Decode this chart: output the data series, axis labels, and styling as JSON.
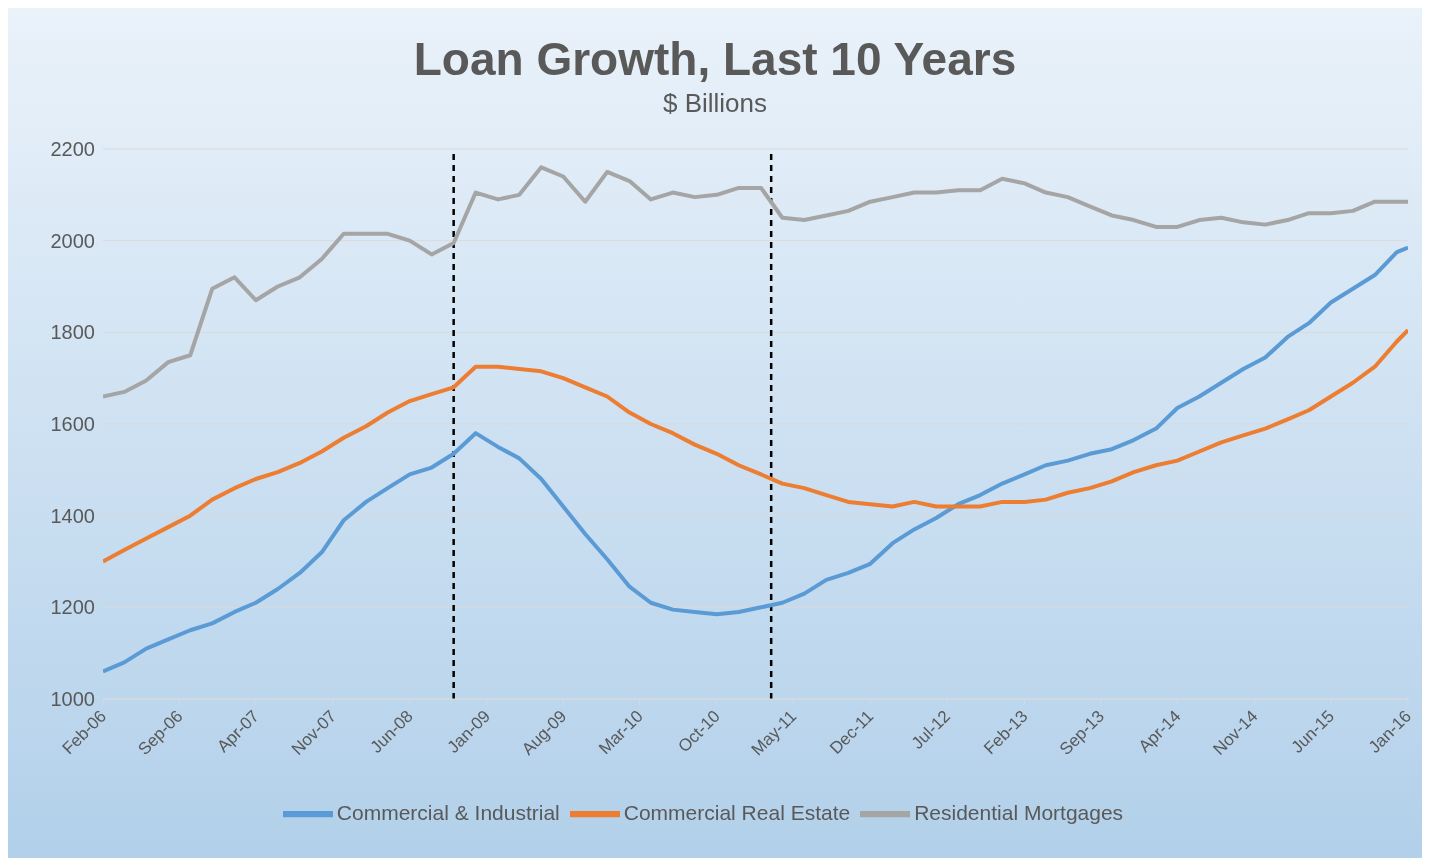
{
  "chart_data": {
    "type": "line",
    "title": "Loan Growth, Last 10 Years",
    "subtitle": "$ Billions",
    "x": [
      "2006-02",
      "2006-04",
      "2006-06",
      "2006-08",
      "2006-10",
      "2006-12",
      "2007-02",
      "2007-04",
      "2007-06",
      "2007-08",
      "2007-10",
      "2007-12",
      "2008-02",
      "2008-04",
      "2008-06",
      "2008-08",
      "2008-10",
      "2008-12",
      "2009-02",
      "2009-04",
      "2009-06",
      "2009-08",
      "2009-10",
      "2009-12",
      "2010-02",
      "2010-04",
      "2010-06",
      "2010-08",
      "2010-10",
      "2010-12",
      "2011-02",
      "2011-04",
      "2011-06",
      "2011-08",
      "2011-10",
      "2011-12",
      "2012-02",
      "2012-04",
      "2012-06",
      "2012-08",
      "2012-10",
      "2012-12",
      "2013-02",
      "2013-04",
      "2013-06",
      "2013-08",
      "2013-10",
      "2013-12",
      "2014-02",
      "2014-04",
      "2014-06",
      "2014-08",
      "2014-10",
      "2014-12",
      "2015-02",
      "2015-04",
      "2015-06",
      "2015-08",
      "2015-10",
      "2015-12",
      "2016-01"
    ],
    "series": [
      {
        "name": "Commercial & Industrial",
        "color": "#5b9bd5",
        "values": [
          1060,
          1080,
          1110,
          1130,
          1150,
          1165,
          1190,
          1210,
          1240,
          1275,
          1320,
          1390,
          1430,
          1460,
          1490,
          1505,
          1535,
          1580,
          1550,
          1525,
          1480,
          1420,
          1360,
          1305,
          1245,
          1210,
          1195,
          1190,
          1185,
          1190,
          1200,
          1210,
          1230,
          1260,
          1275,
          1295,
          1340,
          1370,
          1395,
          1425,
          1445,
          1470,
          1490,
          1510,
          1520,
          1535,
          1545,
          1565,
          1590,
          1635,
          1660,
          1690,
          1720,
          1745,
          1790,
          1820,
          1865,
          1895,
          1925,
          1975,
          1985
        ]
      },
      {
        "name": "Commercial Real Estate",
        "color": "#ed7d31",
        "values": [
          1300,
          1325,
          1350,
          1375,
          1400,
          1435,
          1460,
          1480,
          1495,
          1515,
          1540,
          1570,
          1595,
          1625,
          1650,
          1665,
          1680,
          1725,
          1725,
          1720,
          1715,
          1700,
          1680,
          1660,
          1625,
          1600,
          1580,
          1555,
          1535,
          1510,
          1490,
          1470,
          1460,
          1445,
          1430,
          1425,
          1420,
          1430,
          1420,
          1420,
          1420,
          1430,
          1430,
          1435,
          1450,
          1460,
          1475,
          1495,
          1510,
          1520,
          1540,
          1560,
          1575,
          1590,
          1610,
          1630,
          1660,
          1690,
          1725,
          1780,
          1805
        ]
      },
      {
        "name": "Residential Mortgages",
        "color": "#a5a5a5",
        "values": [
          1660,
          1670,
          1695,
          1735,
          1750,
          1895,
          1920,
          1870,
          1900,
          1920,
          1960,
          2015,
          2015,
          2015,
          2000,
          1970,
          1995,
          2105,
          2090,
          2100,
          2160,
          2140,
          2085,
          2150,
          2130,
          2090,
          2105,
          2095,
          2100,
          2115,
          2115,
          2050,
          2045,
          2055,
          2065,
          2085,
          2095,
          2105,
          2105,
          2110,
          2110,
          2135,
          2125,
          2105,
          2095,
          2075,
          2055,
          2045,
          2030,
          2030,
          2045,
          2050,
          2040,
          2035,
          2045,
          2060,
          2060,
          2065,
          2085,
          2085,
          2085
        ]
      }
    ],
    "xlim": [
      "2006-02",
      "2016-01"
    ],
    "xticks": [
      {
        "value": "2006-02",
        "label": "Feb-06"
      },
      {
        "value": "2006-09",
        "label": "Sep-06"
      },
      {
        "value": "2007-04",
        "label": "Apr-07"
      },
      {
        "value": "2007-11",
        "label": "Nov-07"
      },
      {
        "value": "2008-06",
        "label": "Jun-08"
      },
      {
        "value": "2009-01",
        "label": "Jan-09"
      },
      {
        "value": "2009-08",
        "label": "Aug-09"
      },
      {
        "value": "2010-03",
        "label": "Mar-10"
      },
      {
        "value": "2010-10",
        "label": "Oct-10"
      },
      {
        "value": "2011-05",
        "label": "May-11"
      },
      {
        "value": "2011-12",
        "label": "Dec-11"
      },
      {
        "value": "2012-07",
        "label": "Jul-12"
      },
      {
        "value": "2013-02",
        "label": "Feb-13"
      },
      {
        "value": "2013-09",
        "label": "Sep-13"
      },
      {
        "value": "2014-04",
        "label": "Apr-14"
      },
      {
        "value": "2014-11",
        "label": "Nov-14"
      },
      {
        "value": "2015-06",
        "label": "Jun-15"
      },
      {
        "value": "2016-01",
        "label": "Jan-16"
      }
    ],
    "ylim": [
      1000,
      2200
    ],
    "yticks": [
      1000,
      1200,
      1400,
      1600,
      1800,
      2000,
      2200
    ],
    "ref_lines": [
      {
        "axis": "x",
        "value": "2008-10",
        "color": "#000000",
        "line_style": "dashed"
      },
      {
        "axis": "x",
        "value": "2011-03",
        "color": "#000000",
        "line_style": "dashed"
      }
    ],
    "grid": "y",
    "legend": "bottom",
    "marker": "none",
    "line_style": "solid"
  }
}
